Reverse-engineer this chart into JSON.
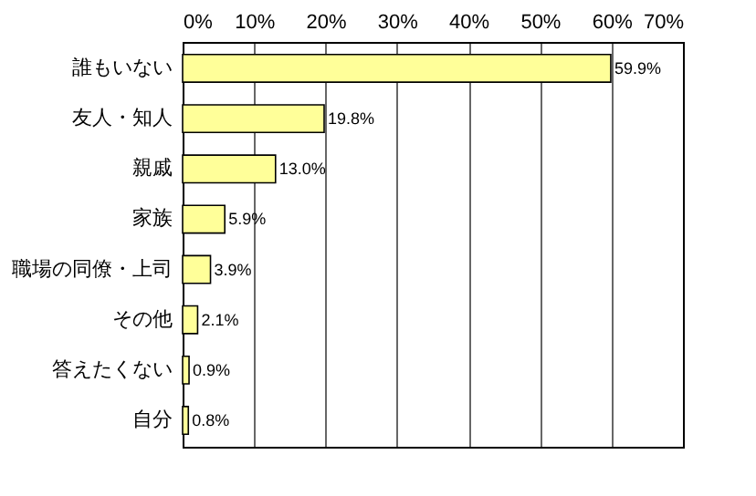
{
  "chart_data": {
    "type": "bar",
    "orientation": "horizontal",
    "categories": [
      "誰もいない",
      "友人・知人",
      "親戚",
      "家族",
      "職場の同僚・上司",
      "その他",
      "答えたくない",
      "自分"
    ],
    "values": [
      59.9,
      19.8,
      13.0,
      5.9,
      3.9,
      2.1,
      0.9,
      0.8
    ],
    "value_labels": [
      "59.9%",
      "19.8%",
      "13.0%",
      "5.9%",
      "3.9%",
      "2.1%",
      "0.9%",
      "0.8%"
    ],
    "color": "#ffff99",
    "xlim": [
      0,
      70
    ],
    "xticks": [
      {
        "value": 0,
        "label": "0%"
      },
      {
        "value": 10,
        "label": "10%"
      },
      {
        "value": 20,
        "label": "20%"
      },
      {
        "value": 30,
        "label": "30%"
      },
      {
        "value": 40,
        "label": "40%"
      },
      {
        "value": 50,
        "label": "50%"
      },
      {
        "value": 60,
        "label": "60%"
      },
      {
        "value": 70,
        "label": "70%"
      }
    ],
    "grid": true
  }
}
